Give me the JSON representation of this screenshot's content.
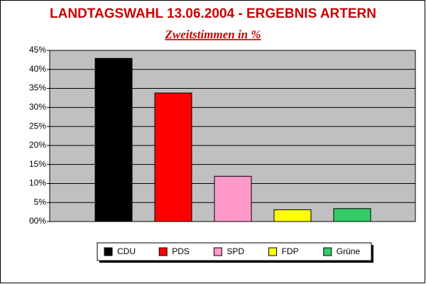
{
  "chart_data": {
    "type": "bar",
    "title": "LANDTAGSWAHL 13.06.2004 - ERGEBNIS ARTERN",
    "subtitle": "Zweitstimmen in %",
    "categories": [
      "CDU",
      "PDS",
      "SPD",
      "FDP",
      "Grüne"
    ],
    "values": [
      42.9,
      33.8,
      11.9,
      3.1,
      3.4
    ],
    "colors": [
      "#000000",
      "#ff0000",
      "#ff99cc",
      "#ffff00",
      "#33cc66"
    ],
    "ylim": [
      0,
      45
    ],
    "yticks": [
      {
        "value": 0,
        "label": "00%"
      },
      {
        "value": 5,
        "label": "5%"
      },
      {
        "value": 10,
        "label": "10%"
      },
      {
        "value": 15,
        "label": "15%"
      },
      {
        "value": 20,
        "label": "20%"
      },
      {
        "value": 25,
        "label": "25%"
      },
      {
        "value": 30,
        "label": "30%"
      },
      {
        "value": 35,
        "label": "35%"
      },
      {
        "value": 40,
        "label": "40%"
      },
      {
        "value": 45,
        "label": "45%"
      }
    ],
    "grid": true,
    "legend": "bottom"
  }
}
